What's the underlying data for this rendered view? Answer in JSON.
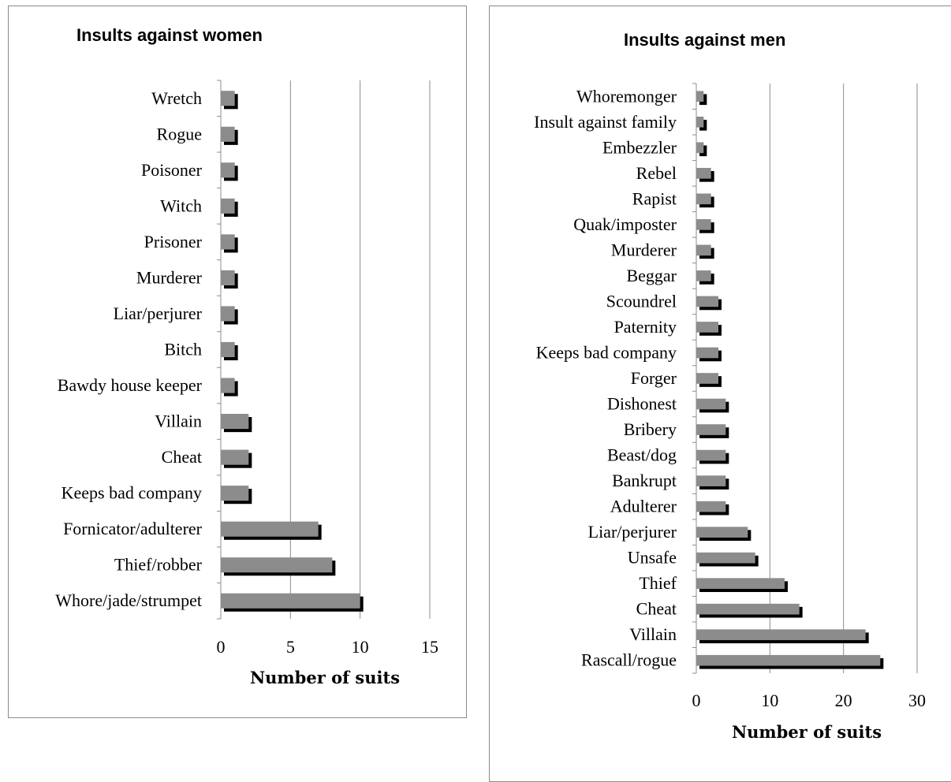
{
  "chart_data": [
    {
      "type": "bar",
      "orientation": "horizontal",
      "title": "Insults against women",
      "xlabel": "Number of suits",
      "ylabel": "",
      "xlim": [
        0,
        15
      ],
      "xticks": [
        "0",
        "5",
        "10",
        "15"
      ],
      "grid": "vertical major gridlines",
      "legend": "none",
      "bar_color": "#8c8c8c",
      "shadow_color": "#000000",
      "categories": [
        "Wretch",
        "Rogue",
        "Poisoner",
        "Witch",
        "Prisoner",
        "Murderer",
        "Liar/perjurer",
        "Bitch",
        "Bawdy house keeper",
        "Villain",
        "Cheat",
        "Keeps bad company",
        "Fornicator/adulterer",
        "Thief/robber",
        "Whore/jade/strumpet"
      ],
      "values": [
        1,
        1,
        1,
        1,
        1,
        1,
        1,
        1,
        1,
        2,
        2,
        2,
        7,
        8,
        10
      ]
    },
    {
      "type": "bar",
      "orientation": "horizontal",
      "title": "Insults against men",
      "xlabel": "Number of suits",
      "ylabel": "",
      "xlim": [
        0,
        30
      ],
      "xticks": [
        "0",
        "10",
        "20",
        "30"
      ],
      "grid": "vertical major gridlines",
      "legend": "none",
      "bar_color": "#8c8c8c",
      "shadow_color": "#000000",
      "categories": [
        "Whoremonger",
        "Insult against family",
        "Embezzler",
        "Rebel",
        "Rapist",
        "Quak/imposter",
        "Murderer",
        "Beggar",
        "Scoundrel",
        "Paternity",
        "Keeps bad company",
        "Forger",
        "Dishonest",
        "Bribery",
        "Beast/dog",
        "Bankrupt",
        "Adulterer",
        "Liar/perjurer",
        "Unsafe ",
        "Thief",
        "Cheat",
        "Villain",
        "Rascall/rogue"
      ],
      "values": [
        1,
        1,
        1,
        2,
        2,
        2,
        2,
        2,
        3,
        3,
        3,
        3,
        4,
        4,
        4,
        4,
        4,
        7,
        8,
        12,
        14,
        23,
        25
      ]
    }
  ]
}
